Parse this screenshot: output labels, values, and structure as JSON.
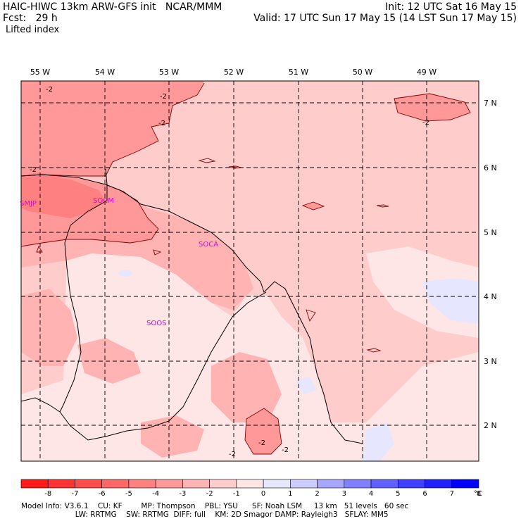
{
  "header": {
    "line1_left": "HAIC-HIWC 13km ARW-GFS init   NCAR/MMM",
    "line2_left": "Fcst:   29 h",
    "line1_right": "Init: 12 UTC Sat 16 May 15",
    "line2_right": "Valid: 17 UTC Sun 17 May 15 (14 LST Sun 17 May 15)",
    "field": "Lifted index"
  },
  "map": {
    "lon_labels": [
      "55 W",
      "54 W",
      "53 W",
      "52 W",
      "51 W",
      "50 W",
      "49 W"
    ],
    "lat_labels": [
      "7 N",
      "6 N",
      "5 N",
      "4 N",
      "3 N",
      "2 N"
    ],
    "stations": [
      {
        "name": "SMJP"
      },
      {
        "name": "SOCM"
      },
      {
        "name": "SOCA"
      },
      {
        "name": "SOOS"
      }
    ],
    "contour_labels": [
      "-2",
      "-2",
      "-2",
      "-2",
      "-2",
      "-2",
      "-2",
      "-2"
    ]
  },
  "colorbar": {
    "ticks": [
      "-8",
      "-7",
      "-6",
      "-5",
      "-4",
      "-3",
      "-2",
      "-1",
      "0",
      "1",
      "2",
      "3",
      "4",
      "5",
      "6",
      "7",
      "8"
    ],
    "unit": "°C",
    "colors": [
      "#ff1a1a",
      "#ff3333",
      "#ff4d4d",
      "#ff6666",
      "#ff8080",
      "#ff9999",
      "#ffb3b3",
      "#ffcccc",
      "#ffe6e6",
      "#e6e6ff",
      "#ccccff",
      "#a6a6ff",
      "#8080ff",
      "#6060ff",
      "#4040ff",
      "#2020ff",
      "#0000ff"
    ]
  },
  "footer": {
    "line1": "Model Info: V3.6.1    CU: KF        MP: Thompson    PBL: YSU      SF: Noah LSM     13 km   51 levels   60 sec",
    "line2": "                       LW: RRTMG    SW: RRTMG  DIFF: full    KM: 2D Smagor DAMP: Rayleigh3   SFLAY: MM5"
  }
}
